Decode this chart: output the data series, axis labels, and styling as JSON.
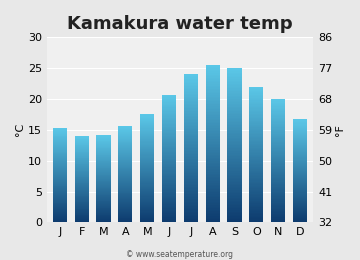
{
  "title": "Kamakura water temp",
  "months": [
    "J",
    "F",
    "M",
    "A",
    "M",
    "J",
    "J",
    "A",
    "S",
    "O",
    "N",
    "D"
  ],
  "values": [
    15.3,
    14.0,
    14.1,
    15.6,
    17.5,
    20.7,
    24.0,
    25.5,
    25.0,
    22.0,
    20.0,
    16.7
  ],
  "ylim_c": [
    0,
    30
  ],
  "ylim_f": [
    32,
    86
  ],
  "yticks_c": [
    0,
    5,
    10,
    15,
    20,
    25,
    30
  ],
  "yticks_f": [
    32,
    41,
    50,
    59,
    68,
    77,
    86
  ],
  "ylabel_left": "°C",
  "ylabel_right": "°F",
  "bar_color_top": "#5bc8e8",
  "bar_color_bottom": "#0d3b6e",
  "bg_color": "#e8e8e8",
  "plot_bg_color": "#f0f0f0",
  "title_fontsize": 13,
  "axis_fontsize": 8,
  "watermark": "© www.seatemperature.org"
}
